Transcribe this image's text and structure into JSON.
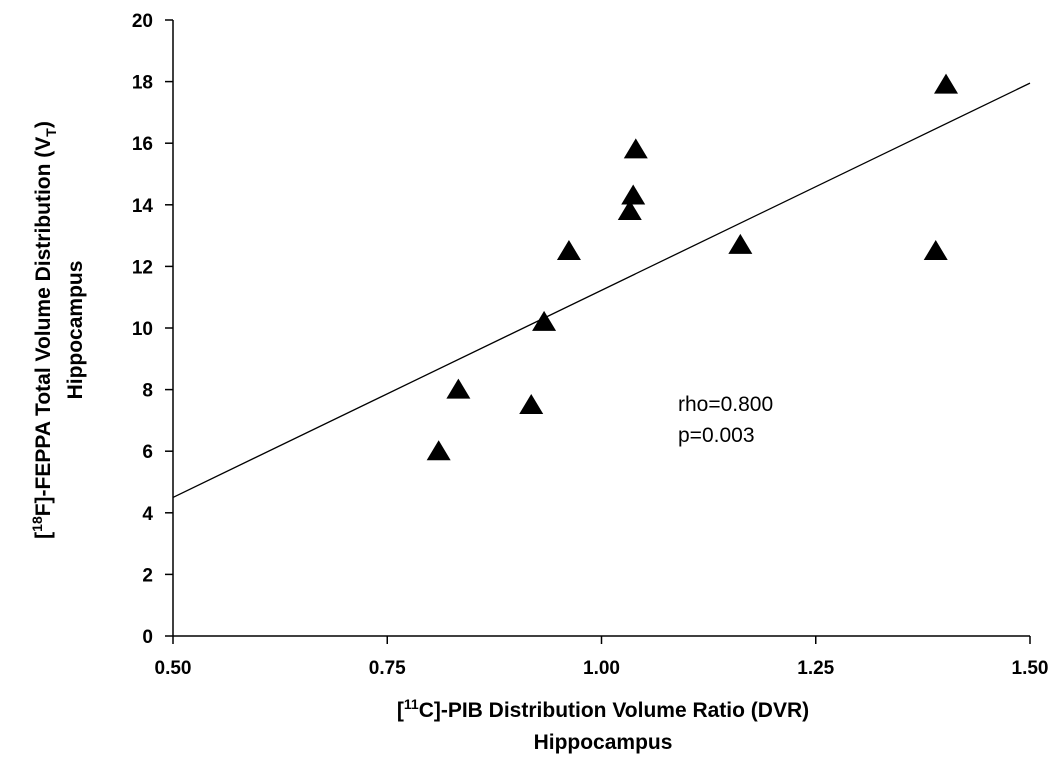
{
  "chart_data": {
    "type": "scatter",
    "x": [
      0.81,
      0.833,
      0.918,
      0.933,
      0.962,
      1.033,
      1.037,
      1.04,
      1.162,
      1.39,
      1.402
    ],
    "y": [
      6.0,
      8.0,
      7.5,
      10.2,
      12.5,
      13.8,
      14.3,
      15.8,
      12.7,
      12.5,
      17.9
    ],
    "marker": "triangle",
    "marker_color": "#000000",
    "regression_line": {
      "x": [
        0.5,
        1.5
      ],
      "y": [
        4.5,
        17.95
      ]
    },
    "xlim": [
      0.5,
      1.5
    ],
    "ylim": [
      0,
      20
    ],
    "x_ticks": [
      0.5,
      0.75,
      1.0,
      1.25,
      1.5
    ],
    "x_tick_labels": [
      "0.50",
      "0.75",
      "1.00",
      "1.25",
      "1.50"
    ],
    "y_ticks": [
      0,
      2,
      4,
      6,
      8,
      10,
      12,
      14,
      16,
      18,
      20
    ],
    "y_tick_labels": [
      "0",
      "2",
      "4",
      "6",
      "8",
      "10",
      "12",
      "14",
      "16",
      "18",
      "20"
    ],
    "xlabel": {
      "line1_prefix": "[",
      "line1_sup": "11",
      "line1_rest": "C]-PIB  Distribution Volume Ratio (DVR)",
      "line2": "Hippocampus"
    },
    "ylabel": {
      "line1_prefix": "[",
      "line1_sup": "18",
      "line1_mid": "F]-FEPPA Total Volume Distribution (V",
      "line1_sub": "T",
      "line1_end": ")",
      "line2": "Hippocampus"
    },
    "annotation": [
      "rho=0.800",
      "p=0.003"
    ],
    "grid": false,
    "legend": "none"
  }
}
